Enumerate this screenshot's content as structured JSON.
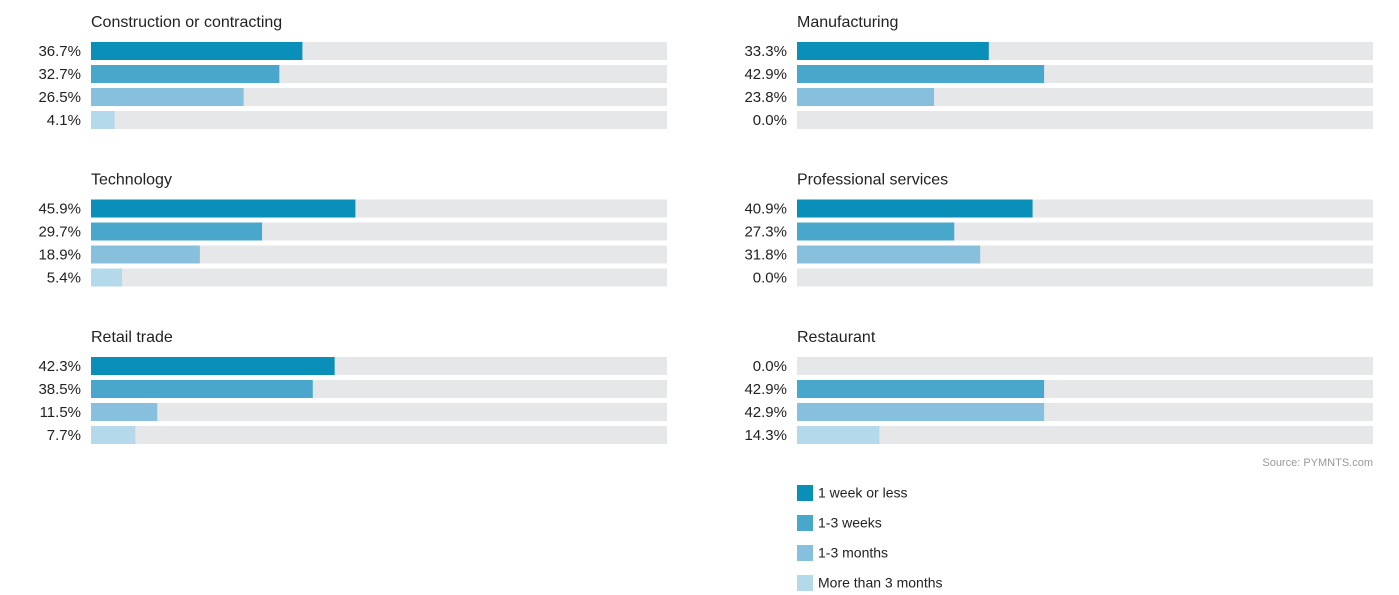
{
  "chart_data": [
    {
      "type": "bar",
      "title": "Construction or contracting",
      "values": [
        36.7,
        32.7,
        26.5,
        4.1
      ],
      "value_labels": [
        "36.7%",
        "32.7%",
        "26.5%",
        "4.1%"
      ],
      "xlim": [
        0,
        100
      ]
    },
    {
      "type": "bar",
      "title": "Manufacturing",
      "values": [
        33.3,
        42.9,
        23.8,
        0.0
      ],
      "value_labels": [
        "33.3%",
        "42.9%",
        "23.8%",
        "0.0%"
      ],
      "xlim": [
        0,
        100
      ]
    },
    {
      "type": "bar",
      "title": "Technology",
      "values": [
        45.9,
        29.7,
        18.9,
        5.4
      ],
      "value_labels": [
        "45.9%",
        "29.7%",
        "18.9%",
        "5.4%"
      ],
      "xlim": [
        0,
        100
      ]
    },
    {
      "type": "bar",
      "title": "Professional services",
      "values": [
        40.9,
        27.3,
        31.8,
        0.0
      ],
      "value_labels": [
        "40.9%",
        "27.3%",
        "31.8%",
        "0.0%"
      ],
      "xlim": [
        0,
        100
      ]
    },
    {
      "type": "bar",
      "title": "Retail trade",
      "values": [
        42.3,
        38.5,
        11.5,
        7.7
      ],
      "value_labels": [
        "42.3%",
        "38.5%",
        "11.5%",
        "7.7%"
      ],
      "xlim": [
        0,
        100
      ]
    },
    {
      "type": "bar",
      "title": "Restaurant",
      "values": [
        0.0,
        42.9,
        42.9,
        14.3
      ],
      "value_labels": [
        "0.0%",
        "42.9%",
        "42.9%",
        "14.3%"
      ],
      "xlim": [
        0,
        100
      ]
    }
  ],
  "legend": [
    {
      "name": "1 week or less",
      "color": "#0a8fb8"
    },
    {
      "name": "1-3 weeks",
      "color": "#49a7cc"
    },
    {
      "name": "1-3 months",
      "color": "#86c0dd"
    },
    {
      "name": "More than 3 months",
      "color": "#b3d9ea"
    }
  ],
  "source": "Source: PYMNTS.com"
}
